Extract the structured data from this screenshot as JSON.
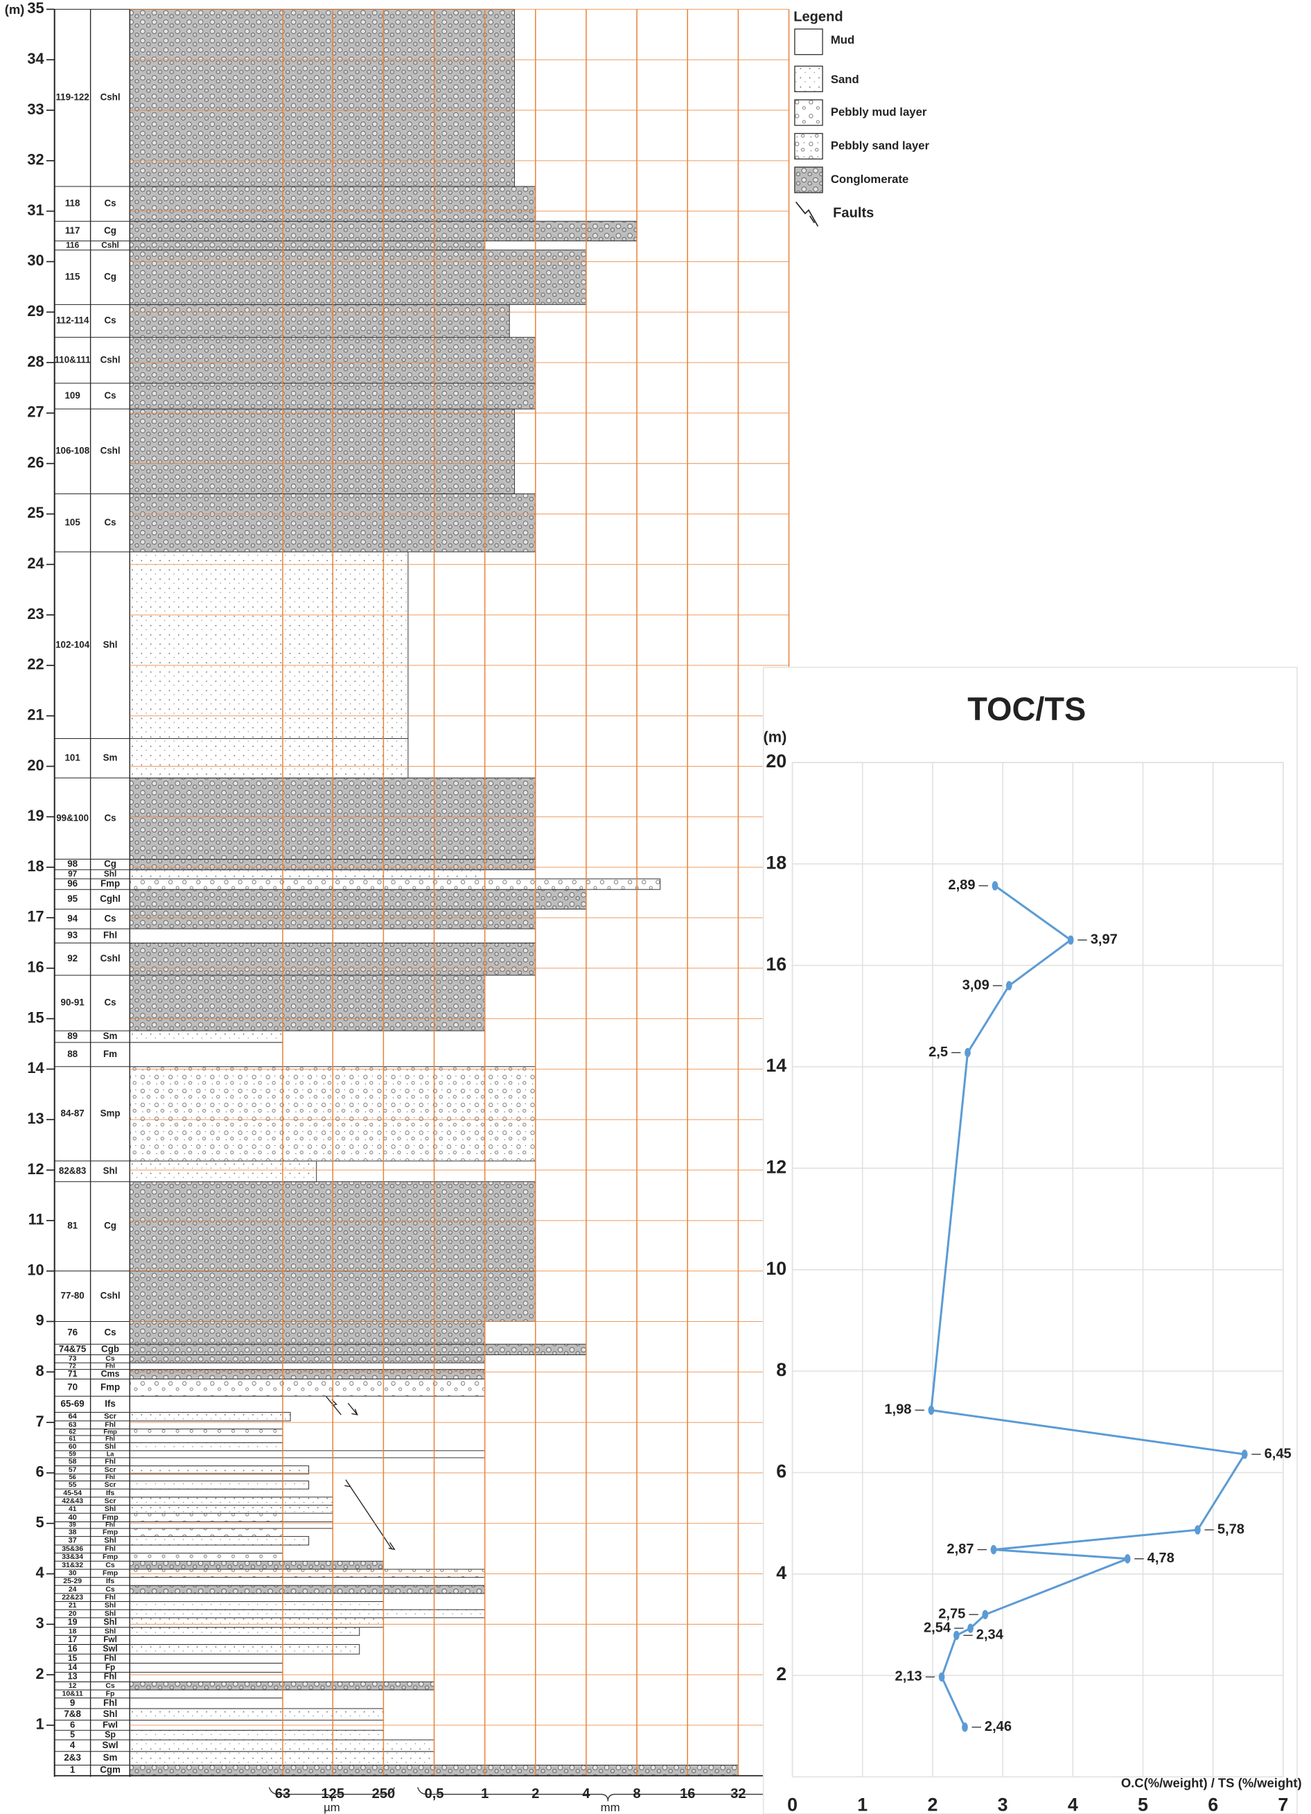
{
  "chart_data": [
    {
      "type": "strat-log",
      "ylabel": "(m)",
      "ylim": [
        0,
        35
      ],
      "yticks": [
        1,
        2,
        3,
        4,
        5,
        6,
        7,
        8,
        9,
        10,
        11,
        12,
        13,
        14,
        15,
        16,
        17,
        18,
        19,
        20,
        21,
        22,
        23,
        24,
        25,
        26,
        27,
        28,
        29,
        30,
        31,
        32,
        33,
        34,
        35
      ],
      "xscale": "log2",
      "xlim": [
        0.0078,
        64
      ],
      "xticks": [
        {
          "value": 0.063,
          "label": "63"
        },
        {
          "value": 0.125,
          "label": "125"
        },
        {
          "value": 0.25,
          "label": "250"
        },
        {
          "value": 0.5,
          "label": "0,5"
        },
        1,
        2,
        4,
        8,
        16,
        32
      ],
      "xunits": [
        "µm",
        "mm"
      ],
      "grid_color": "#e8823a",
      "beds": [
        {
          "id": "1",
          "facies": "Cgm",
          "top": 0.21,
          "grain": 32
        },
        {
          "id": "2&3",
          "facies": "Sm",
          "top": 0.48,
          "grain": 0.5
        },
        {
          "id": "4",
          "facies": "Swl",
          "top": 0.71,
          "grain": 0.5
        },
        {
          "id": "5",
          "facies": "Sp",
          "top": 0.9,
          "grain": 0.25
        },
        {
          "id": "6",
          "facies": "Fwl",
          "top": 1.1,
          "grain": 0.063
        },
        {
          "id": "7&8",
          "facies": "Shl",
          "top": 1.33,
          "grain": 0.25
        },
        {
          "id": "9",
          "facies": "Fhl",
          "top": 1.54,
          "grain": 0.063
        },
        {
          "id": "10&11",
          "facies": "Fp",
          "top": 1.7,
          "grain": 0.063
        },
        {
          "id": "12",
          "facies": "Cs",
          "top": 1.86,
          "grain": 0.5
        },
        {
          "id": "13",
          "facies": "Fhl",
          "top": 2.05,
          "grain": 0.063
        },
        {
          "id": "14",
          "facies": "Fp",
          "top": 2.23,
          "grain": 0.063
        },
        {
          "id": "15",
          "facies": "Fhl",
          "top": 2.41,
          "grain": 0.063
        },
        {
          "id": "16",
          "facies": "Swl",
          "top": 2.6,
          "grain": 0.18
        },
        {
          "id": "17",
          "facies": "Fwl",
          "top": 2.78,
          "grain": 0.063
        },
        {
          "id": "18",
          "facies": "Shl",
          "top": 2.94,
          "grain": 0.18
        },
        {
          "id": "19",
          "facies": "Shl",
          "top": 3.13,
          "grain": 0.25
        },
        {
          "id": "20",
          "facies": "Shl",
          "top": 3.29,
          "grain": 1
        },
        {
          "id": "21",
          "facies": "Shl",
          "top": 3.45,
          "grain": 0.25
        },
        {
          "id": "22&23",
          "facies": "Fhl",
          "top": 3.61,
          "grain": 0.063
        },
        {
          "id": "24",
          "facies": "Cs",
          "top": 3.77,
          "grain": 1
        },
        {
          "id": "25-29",
          "facies": "Ifs",
          "top": 3.93,
          "grain": 0.063
        },
        {
          "id": "30",
          "facies": "Fmp",
          "top": 4.09,
          "grain": 1
        },
        {
          "id": "31&32",
          "facies": "Cs",
          "top": 4.25,
          "grain": 0.25
        },
        {
          "id": "33&34",
          "facies": "Fmp",
          "top": 4.41,
          "grain": 0.063
        },
        {
          "id": "35&36",
          "facies": "Fhl",
          "top": 4.57,
          "grain": 0.063
        },
        {
          "id": "37",
          "facies": "Shl",
          "top": 4.74,
          "grain": 0.09
        },
        {
          "id": "38",
          "facies": "Fmp",
          "top": 4.9,
          "grain": 0.063
        },
        {
          "id": "39",
          "facies": "Fhl",
          "top": 5.03,
          "grain": 0.125
        },
        {
          "id": "40",
          "facies": "Fmp",
          "top": 5.2,
          "grain": 0.063
        },
        {
          "id": "41",
          "facies": "Shl",
          "top": 5.36,
          "grain": 0.125
        },
        {
          "id": "42&43",
          "facies": "Scr",
          "top": 5.52,
          "grain": 0.125
        },
        {
          "id": "45-54",
          "facies": "Ifs",
          "top": 5.68,
          "grain": 0.063
        },
        {
          "id": "55",
          "facies": "Scr",
          "top": 5.84,
          "grain": 0.09
        },
        {
          "id": "56",
          "facies": "Fhl",
          "top": 5.98,
          "grain": 0.063
        },
        {
          "id": "57",
          "facies": "Scr",
          "top": 6.14,
          "grain": 0.09
        },
        {
          "id": "58",
          "facies": "Fhl",
          "top": 6.3,
          "grain": 0.063
        },
        {
          "id": "59",
          "facies": "La",
          "top": 6.44,
          "grain": 1
        },
        {
          "id": "60",
          "facies": "Shl",
          "top": 6.6,
          "grain": 0.063
        },
        {
          "id": "61",
          "facies": "Fhl",
          "top": 6.74,
          "grain": 0.063
        },
        {
          "id": "62",
          "facies": "Fmp",
          "top": 6.87,
          "grain": 0.063
        },
        {
          "id": "63",
          "facies": "Fhl",
          "top": 7.03,
          "grain": 0.063
        },
        {
          "id": "64",
          "facies": "Scr",
          "top": 7.2,
          "grain": 0.07
        },
        {
          "id": "65-69",
          "facies": "Ifs",
          "top": 7.52,
          "grain": 0.063
        },
        {
          "id": "70",
          "facies": "Fmp",
          "top": 7.86,
          "grain": 1
        },
        {
          "id": "71",
          "facies": "Cms",
          "top": 8.05,
          "grain": 1
        },
        {
          "id": "72",
          "facies": "Fhl",
          "top": 8.18,
          "grain": 0.063
        },
        {
          "id": "73",
          "facies": "Cs",
          "top": 8.34,
          "grain": 1
        },
        {
          "id": "74&75",
          "facies": "Cgb",
          "top": 8.55,
          "grain": 4
        },
        {
          "id": "76",
          "facies": "Cs",
          "top": 9.0,
          "grain": 1
        },
        {
          "id": "77-80",
          "facies": "Cshl",
          "top": 10.0,
          "grain": 2
        },
        {
          "id": "81",
          "facies": "Cg",
          "top": 11.77,
          "grain": 2
        },
        {
          "id": "82&83",
          "facies": "Shl",
          "top": 12.18,
          "grain": 0.1
        },
        {
          "id": "84-87",
          "facies": "Smp",
          "top": 14.05,
          "grain": 2
        },
        {
          "id": "88",
          "facies": "Fm",
          "top": 14.53,
          "grain": 0.063
        },
        {
          "id": "89",
          "facies": "Sm",
          "top": 14.76,
          "grain": 0.063
        },
        {
          "id": "90-91",
          "facies": "Cs",
          "top": 15.86,
          "grain": 1
        },
        {
          "id": "92",
          "facies": "Cshl",
          "top": 16.5,
          "grain": 2
        },
        {
          "id": "93",
          "facies": "Fhl",
          "top": 16.78,
          "grain": 2
        },
        {
          "id": "94",
          "facies": "Cs",
          "top": 17.17,
          "grain": 2
        },
        {
          "id": "95",
          "facies": "Cghl",
          "top": 17.56,
          "grain": 4
        },
        {
          "id": "96",
          "facies": "Fmp",
          "top": 17.77,
          "grain": 11
        },
        {
          "id": "97",
          "facies": "Shl",
          "top": 17.95,
          "grain": 1
        },
        {
          "id": "98",
          "facies": "Cg",
          "top": 18.16,
          "grain": 2
        },
        {
          "id": "99&100",
          "facies": "Cs",
          "top": 19.77,
          "grain": 2
        },
        {
          "id": "101",
          "facies": "Sm",
          "top": 20.55,
          "grain": 0.35
        },
        {
          "id": "102-104",
          "facies": "Shl",
          "top": 24.25,
          "grain": 0.35
        },
        {
          "id": "105",
          "facies": "Cs",
          "top": 25.4,
          "grain": 2
        },
        {
          "id": "106-108",
          "facies": "Cshl",
          "top": 27.08,
          "grain": 1.5
        },
        {
          "id": "109",
          "facies": "Cs",
          "top": 27.59,
          "grain": 2
        },
        {
          "id": "110&111",
          "facies": "Cshl",
          "top": 28.5,
          "grain": 2
        },
        {
          "id": "112-114",
          "facies": "Cs",
          "top": 29.15,
          "grain": 1.4
        },
        {
          "id": "115",
          "facies": "Cg",
          "top": 30.23,
          "grain": 4
        },
        {
          "id": "116",
          "facies": "Cshl",
          "top": 30.41,
          "grain": 1
        },
        {
          "id": "117",
          "facies": "Cg",
          "top": 30.8,
          "grain": 8
        },
        {
          "id": "118",
          "facies": "Cs",
          "top": 31.49,
          "grain": 2
        },
        {
          "id": "119-122",
          "facies": "Cshl",
          "top": 35,
          "grain": 1.5
        }
      ],
      "legend": {
        "title": "Legend",
        "items": [
          "Mud",
          "Sand",
          "Pebbly mud layer",
          "Pebbly sand layer",
          "Conglomerate"
        ],
        "faults": "Faults"
      }
    },
    {
      "type": "depth-line",
      "title": "TOC/TS",
      "ylabel": "(m)",
      "xlabel": "O.C(%/weight) / TS (%/weight)",
      "xlim": [
        0,
        7
      ],
      "xticks": [
        0,
        1,
        2,
        3,
        4,
        5,
        6,
        7
      ],
      "ylim": [
        0,
        20
      ],
      "yticks": [
        2,
        4,
        6,
        8,
        10,
        12,
        14,
        16,
        18,
        20
      ],
      "grid": true,
      "color": "#5b9bd5",
      "depth": [
        0.98,
        1.97,
        2.79,
        2.93,
        3.2,
        4.3,
        4.48,
        4.87,
        6.36,
        7.23,
        14.28,
        15.6,
        16.5,
        17.57
      ],
      "values": [
        2.46,
        2.13,
        2.34,
        2.54,
        2.75,
        4.78,
        2.87,
        5.78,
        6.45,
        1.98,
        2.5,
        3.09,
        3.97,
        2.89
      ],
      "value_labels": [
        "2,46",
        "2,13",
        "2,34",
        "2,54",
        "2,75",
        "4,78",
        "2,87",
        "5,78",
        "6,45",
        "1,98",
        "2,5",
        "3,09",
        "3,97",
        "2,89"
      ]
    }
  ]
}
